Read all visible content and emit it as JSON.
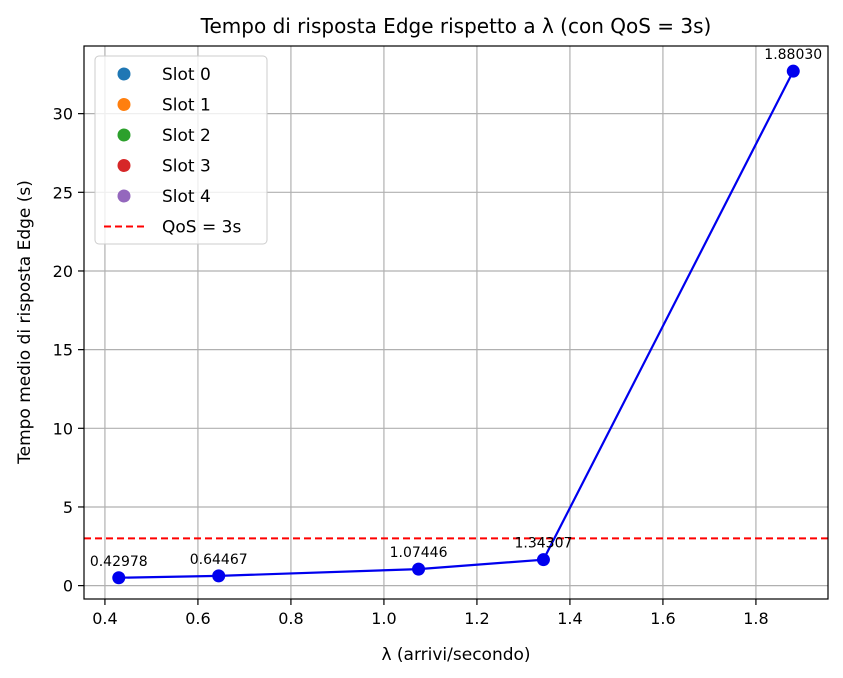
{
  "chart_data": {
    "type": "line",
    "title": "Tempo di risposta Edge rispetto a λ (con QoS = 3s)",
    "xlabel": "λ (arrivi/secondo)",
    "ylabel": "Tempo medio di risposta Edge (s)",
    "xlim": [
      0.355,
      1.955
    ],
    "ylim": [
      -0.85,
      34.3
    ],
    "xticks": [
      0.4,
      0.6,
      0.8,
      1.0,
      1.2,
      1.4,
      1.6,
      1.8
    ],
    "xtick_labels": [
      "0.4",
      "0.6",
      "0.8",
      "1.0",
      "1.2",
      "1.4",
      "1.6",
      "1.8"
    ],
    "yticks": [
      0,
      5,
      10,
      15,
      20,
      25,
      30
    ],
    "ytick_labels": [
      "0",
      "5",
      "10",
      "15",
      "20",
      "25",
      "30"
    ],
    "grid": true,
    "legend_position": "top-left",
    "series": [
      {
        "name": "",
        "color": "#0000ee",
        "x": [
          0.42978,
          0.64467,
          1.07446,
          1.34307,
          1.8803
        ],
        "y": [
          0.5,
          0.62,
          1.05,
          1.65,
          32.7
        ],
        "point_labels": [
          "0.42978",
          "0.64467",
          "1.07446",
          "1.34307",
          "1.88030"
        ]
      }
    ],
    "qos_line": {
      "label": "QoS = 3s",
      "y": 3,
      "color": "#ff0000"
    },
    "legend": [
      {
        "label": "Slot 0",
        "color": "#1f77b4",
        "marker": "dot"
      },
      {
        "label": "Slot 1",
        "color": "#ff7f0e",
        "marker": "dot"
      },
      {
        "label": "Slot 2",
        "color": "#2ca02c",
        "marker": "dot"
      },
      {
        "label": "Slot 3",
        "color": "#d62728",
        "marker": "dot"
      },
      {
        "label": "Slot 4",
        "color": "#9467bd",
        "marker": "dot"
      },
      {
        "label": "QoS = 3s",
        "color": "#ff0000",
        "marker": "dashed-line"
      }
    ]
  }
}
